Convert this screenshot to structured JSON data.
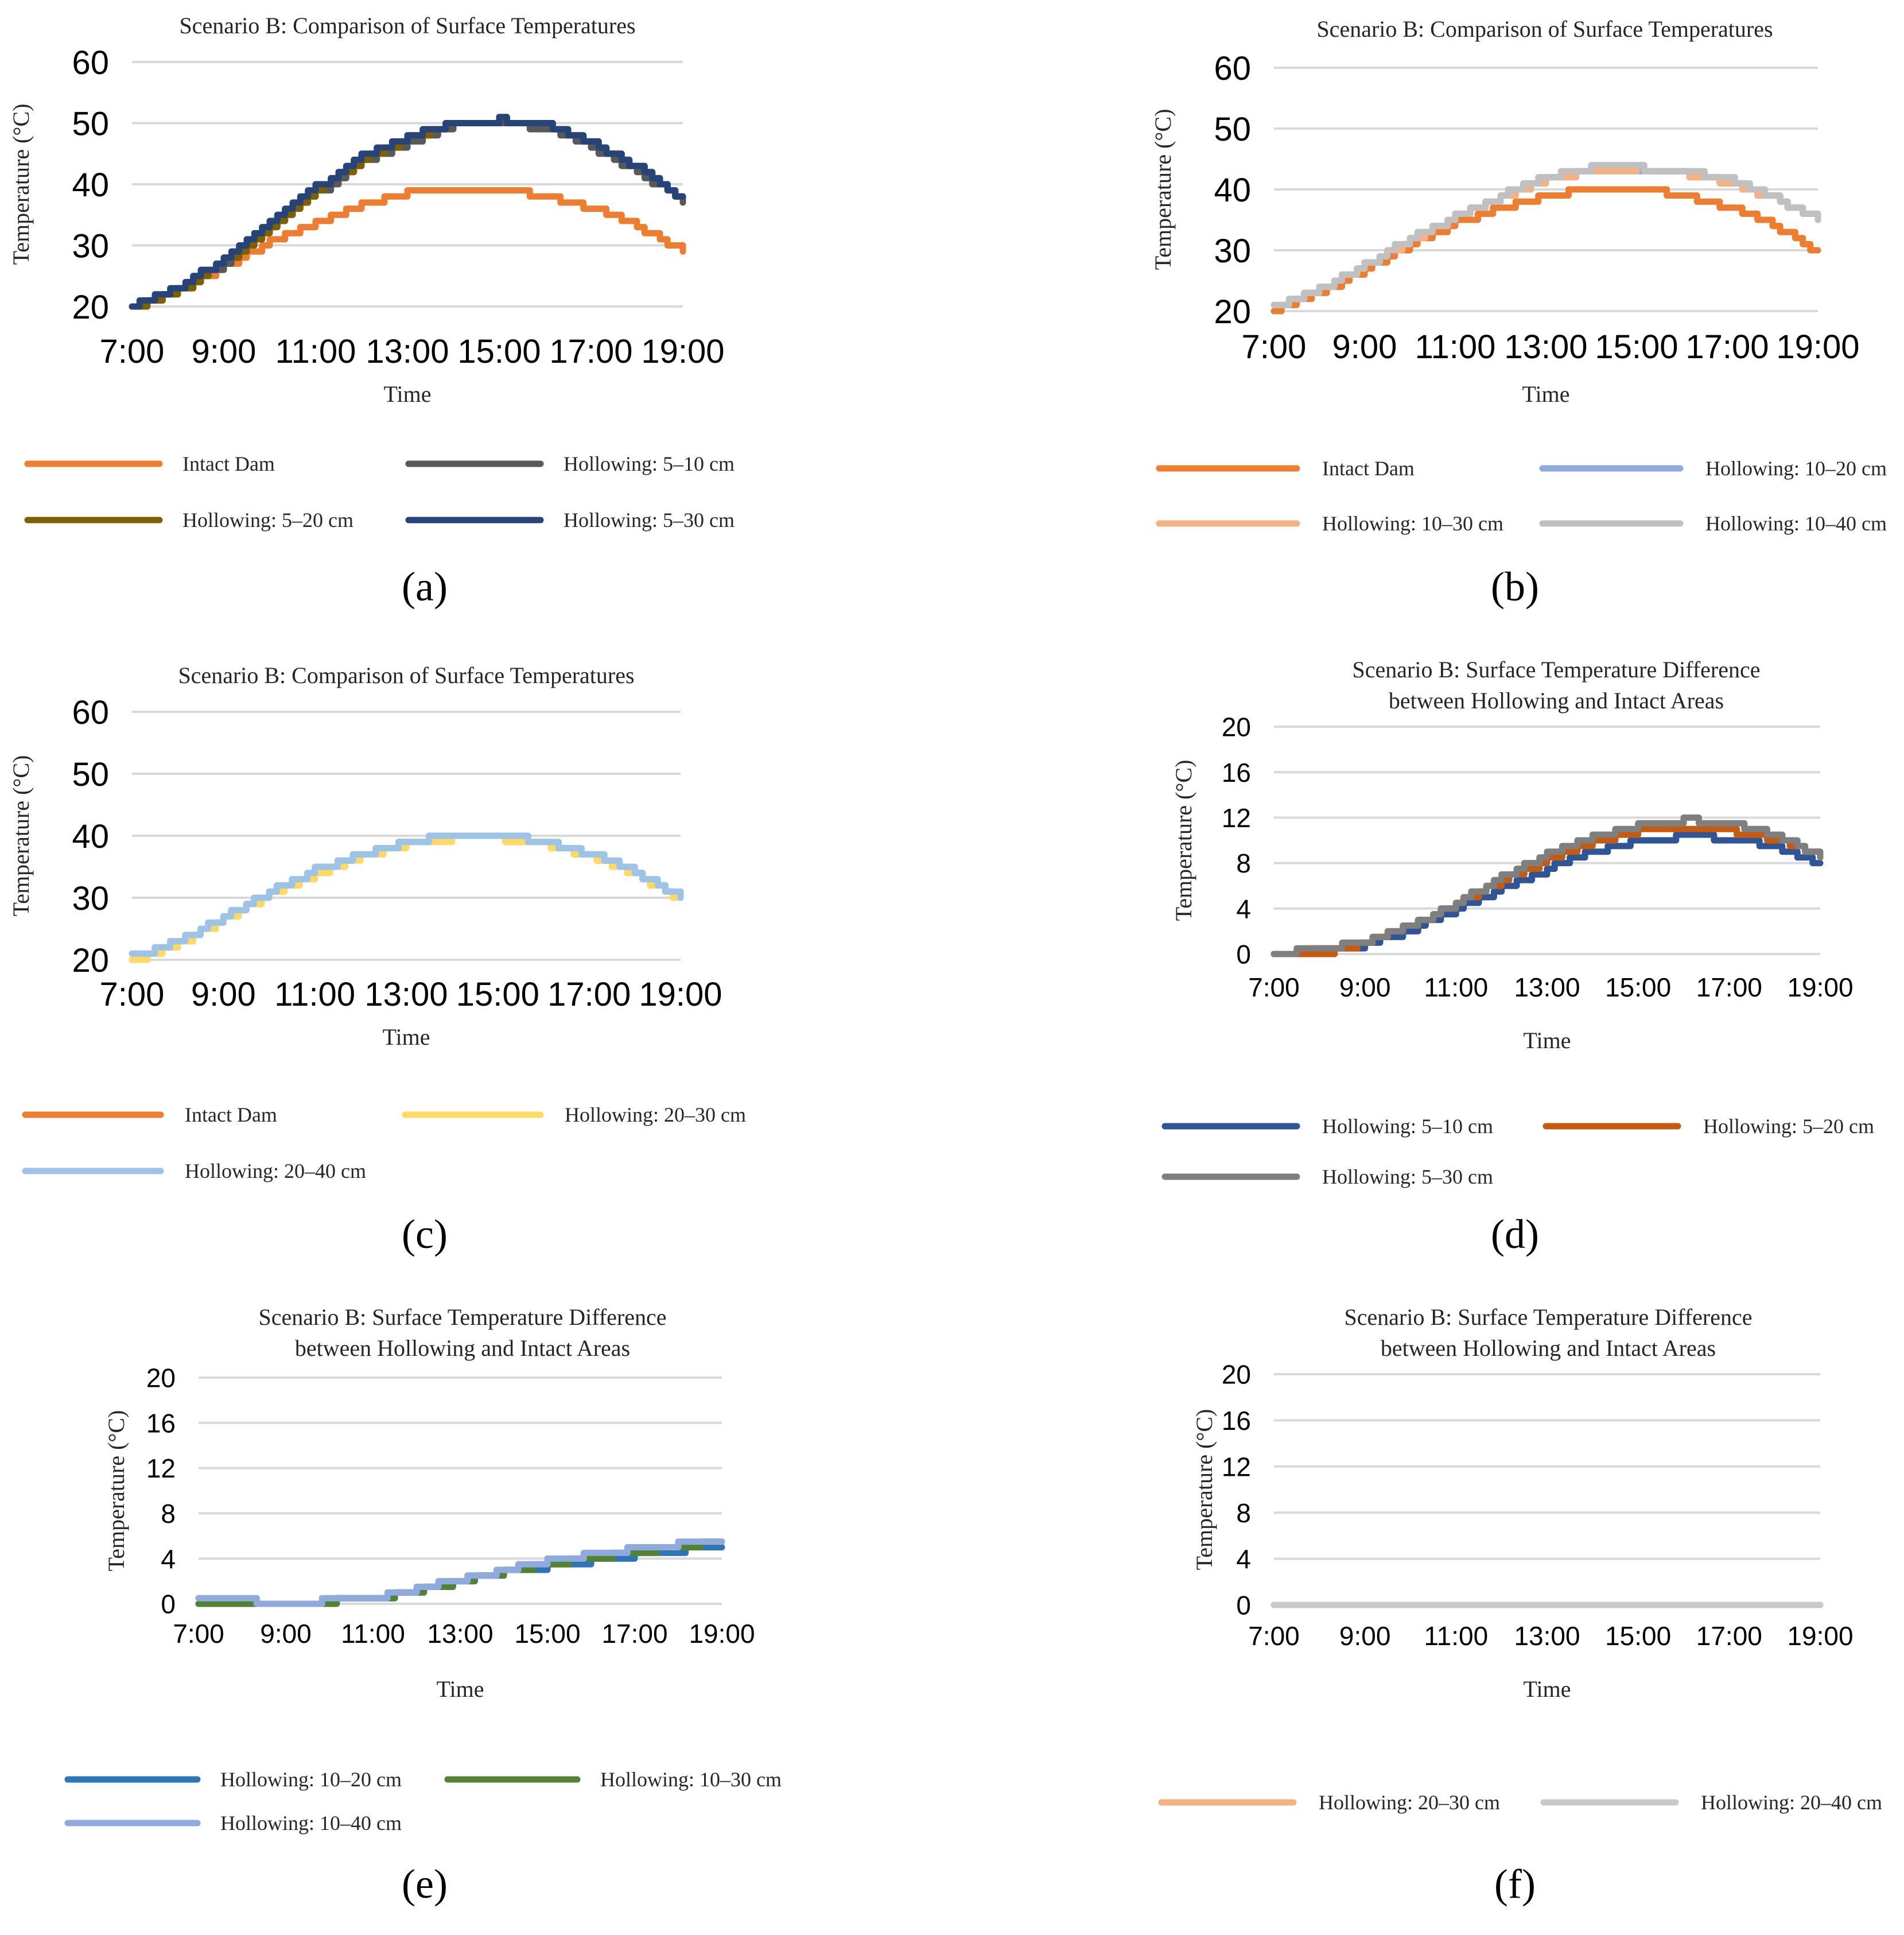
{
  "figure": {
    "panels": [
      {
        "id": "a",
        "label": "(a)",
        "title": [
          "Scenario B: Comparison of Surface Temperatures"
        ],
        "ylabel": "Temperature (°C)",
        "xlabel": "Time",
        "y_ticks": [
          "20",
          "30",
          "40",
          "50",
          "60"
        ],
        "x_ticks": [
          "7:00",
          "9:00",
          "11:00",
          "13:00",
          "15:00",
          "17:00",
          "19:00"
        ],
        "legend": [
          "Intact Dam",
          "Hollowing: 5–10 cm",
          "Hollowing: 5–20 cm",
          "Hollowing: 5–30 cm"
        ]
      },
      {
        "id": "b",
        "label": "(b)",
        "title": [
          "Scenario B: Comparison of Surface Temperatures"
        ],
        "ylabel": "Temperature (°C)",
        "xlabel": "Time",
        "y_ticks": [
          "20",
          "30",
          "40",
          "50",
          "60"
        ],
        "x_ticks": [
          "7:00",
          "9:00",
          "11:00",
          "13:00",
          "15:00",
          "17:00",
          "19:00"
        ],
        "legend": [
          "Intact Dam",
          "Hollowing: 10–20 cm",
          "Hollowing: 10–30 cm",
          "Hollowing: 10–40 cm"
        ]
      },
      {
        "id": "c",
        "label": "(c)",
        "title": [
          "Scenario B: Comparison of Surface Temperatures"
        ],
        "ylabel": "Temperature (°C)",
        "xlabel": "Time",
        "y_ticks": [
          "20",
          "30",
          "40",
          "50",
          "60"
        ],
        "x_ticks": [
          "7:00",
          "9:00",
          "11:00",
          "13:00",
          "15:00",
          "17:00",
          "19:00"
        ],
        "legend": [
          "Intact Dam",
          "Hollowing: 20–30 cm",
          "Hollowing: 20–40 cm"
        ]
      },
      {
        "id": "d",
        "label": "(d)",
        "title": [
          "Scenario B: Surface Temperature Difference",
          "between Hollowing and Intact Areas"
        ],
        "ylabel": "Temperature (°C)",
        "xlabel": "Time",
        "y_ticks": [
          "0",
          "4",
          "8",
          "12",
          "16",
          "20"
        ],
        "x_ticks": [
          "7:00",
          "9:00",
          "11:00",
          "13:00",
          "15:00",
          "17:00",
          "19:00"
        ],
        "legend": [
          "Hollowing: 5–10 cm",
          "Hollowing: 5–20 cm",
          "Hollowing: 5–30 cm"
        ]
      },
      {
        "id": "e",
        "label": "(e)",
        "title": [
          "Scenario B: Surface Temperature Difference",
          "between Hollowing and Intact Areas"
        ],
        "ylabel": "Temperature (°C)",
        "xlabel": "Time",
        "y_ticks": [
          "0",
          "4",
          "8",
          "12",
          "16",
          "20"
        ],
        "x_ticks": [
          "7:00",
          "9:00",
          "11:00",
          "13:00",
          "15:00",
          "17:00",
          "19:00"
        ],
        "legend": [
          "Hollowing: 10–20 cm",
          "Hollowing: 10–30 cm",
          "Hollowing: 10–40 cm"
        ]
      },
      {
        "id": "f",
        "label": "(f)",
        "title": [
          "Scenario B: Surface Temperature Difference",
          "between Hollowing and Intact Areas"
        ],
        "ylabel": "Temperature (°C)",
        "xlabel": "Time",
        "y_ticks": [
          "0",
          "4",
          "8",
          "12",
          "16",
          "20"
        ],
        "x_ticks": [
          "7:00",
          "9:00",
          "11:00",
          "13:00",
          "15:00",
          "17:00",
          "19:00"
        ],
        "legend": [
          "Hollowing: 20–30 cm",
          "Hollowing: 20–40 cm"
        ]
      }
    ]
  },
  "chart_data": [
    {
      "type": "line",
      "panel": "a",
      "title": "Scenario B: Comparison of Surface Temperatures",
      "xlabel": "Time",
      "ylabel": "Temperature (°C)",
      "x": [
        "7:00",
        "8:00",
        "9:00",
        "10:00",
        "11:00",
        "12:00",
        "13:00",
        "14:00",
        "15:00",
        "16:00",
        "17:00",
        "18:00",
        "19:00"
      ],
      "xlim": [
        "7:00",
        "19:00"
      ],
      "ylim": [
        20,
        60
      ],
      "grid": true,
      "legend_position": "bottom",
      "series": [
        {
          "name": "Intact Dam",
          "color": "#ED7D31",
          "values": [
            20,
            22.5,
            26.5,
            30.5,
            33.5,
            36.5,
            38.5,
            39,
            39,
            38,
            36,
            33,
            29
          ]
        },
        {
          "name": "Hollowing: 5–10 cm",
          "color": "#595959",
          "values": [
            20,
            22.5,
            27,
            32.5,
            38.5,
            43.5,
            47,
            49.5,
            50,
            49,
            46,
            42,
            37
          ]
        },
        {
          "name": "Hollowing: 5–20 cm",
          "color": "#7F6000",
          "values": [
            20,
            22.5,
            27.5,
            33,
            39,
            44,
            47.5,
            50,
            50.5,
            49.5,
            46.5,
            42.5,
            37.5
          ]
        },
        {
          "name": "Hollowing: 5–30 cm",
          "color": "#264478",
          "values": [
            20,
            23,
            28,
            33.5,
            39.5,
            44.5,
            48,
            50,
            50.5,
            49.5,
            46.5,
            42.5,
            37.5
          ]
        }
      ]
    },
    {
      "type": "line",
      "panel": "b",
      "title": "Scenario B: Comparison of Surface Temperatures",
      "xlabel": "Time",
      "ylabel": "Temperature (°C)",
      "x": [
        "7:00",
        "8:00",
        "9:00",
        "10:00",
        "11:00",
        "12:00",
        "13:00",
        "14:00",
        "15:00",
        "16:00",
        "17:00",
        "18:00",
        "19:00"
      ],
      "xlim": [
        "7:00",
        "19:00"
      ],
      "ylim": [
        20,
        60
      ],
      "grid": true,
      "legend_position": "bottom",
      "series": [
        {
          "name": "Intact Dam",
          "color": "#ED7D31",
          "values": [
            20,
            23,
            27,
            31,
            34.5,
            37,
            39,
            40,
            40,
            39,
            37,
            34,
            29.5
          ]
        },
        {
          "name": "Hollowing: 10–20 cm",
          "color": "#8FAADC",
          "values": [
            20.5,
            23.5,
            27.5,
            31.5,
            35.5,
            38.5,
            41.5,
            43,
            43,
            42.5,
            41,
            38.5,
            35
          ]
        },
        {
          "name": "Hollowing: 10–30 cm",
          "color": "#F4B183",
          "values": [
            20.5,
            23.5,
            27.5,
            31.5,
            35.5,
            38.5,
            41.5,
            43,
            43.5,
            42.5,
            41,
            38.5,
            35
          ]
        },
        {
          "name": "Hollowing: 10–40 cm",
          "color": "#C0C0C0",
          "values": [
            20.5,
            23.5,
            27.5,
            32,
            35.5,
            39,
            42,
            43.5,
            43.5,
            43,
            41.5,
            38.5,
            35
          ]
        }
      ]
    },
    {
      "type": "line",
      "panel": "c",
      "title": "Scenario B: Comparison of Surface Temperatures",
      "xlabel": "Time",
      "ylabel": "Temperature (°C)",
      "x": [
        "7:00",
        "8:00",
        "9:00",
        "10:00",
        "11:00",
        "12:00",
        "13:00",
        "14:00",
        "15:00",
        "16:00",
        "17:00",
        "18:00",
        "19:00"
      ],
      "xlim": [
        "7:00",
        "19:00"
      ],
      "ylim": [
        20,
        60
      ],
      "grid": true,
      "legend_position": "bottom",
      "series": [
        {
          "name": "Intact Dam",
          "color": "#ED7D31",
          "values": [
            20,
            22.5,
            26.5,
            30.5,
            34,
            37,
            39,
            40,
            39.5,
            38.5,
            36.5,
            33.5,
            29.5
          ]
        },
        {
          "name": "Hollowing: 20–30 cm",
          "color": "#FFD966",
          "values": [
            20,
            22.5,
            26.5,
            30.5,
            34,
            36.5,
            38.5,
            39.5,
            39.5,
            38.5,
            36.5,
            33.5,
            29.5
          ]
        },
        {
          "name": "Hollowing: 20–40 cm",
          "color": "#9DC3E6",
          "values": [
            20.5,
            23,
            27,
            31,
            34.5,
            37,
            39,
            40,
            40,
            39,
            37,
            34,
            30
          ]
        }
      ]
    },
    {
      "type": "line",
      "panel": "d",
      "title": "Scenario B: Surface Temperature Difference between Hollowing and Intact Areas",
      "xlabel": "Time",
      "ylabel": "Temperature (°C)",
      "x": [
        "7:00",
        "8:00",
        "9:00",
        "10:00",
        "11:00",
        "12:00",
        "13:00",
        "14:00",
        "15:00",
        "16:00",
        "17:00",
        "18:00",
        "19:00"
      ],
      "xlim": [
        "7:00",
        "19:00"
      ],
      "ylim": [
        0,
        20
      ],
      "grid": true,
      "legend_position": "bottom",
      "series": [
        {
          "name": "Hollowing: 5–10 cm",
          "color": "#2F5597",
          "values": [
            0,
            0.3,
            0.8,
            2.2,
            4,
            5.8,
            7.5,
            9,
            10,
            10.3,
            10.2,
            9.5,
            7.8
          ]
        },
        {
          "name": "Hollowing: 5–20 cm",
          "color": "#C55A11",
          "values": [
            0,
            0,
            1,
            2.5,
            4.5,
            6.5,
            8.3,
            9.8,
            10.8,
            11,
            10.8,
            10,
            8.5
          ]
        },
        {
          "name": "Hollowing: 5–30 cm",
          "color": "#7F7F7F",
          "values": [
            0,
            0.5,
            1,
            2.5,
            4.5,
            6.8,
            8.8,
            10.3,
            11.3,
            11.8,
            11.5,
            10.5,
            8.5
          ]
        }
      ]
    },
    {
      "type": "line",
      "panel": "e",
      "title": "Scenario B: Surface Temperature Difference between Hollowing and Intact Areas",
      "xlabel": "Time",
      "ylabel": "Temperature (°C)",
      "x": [
        "7:00",
        "8:00",
        "9:00",
        "10:00",
        "11:00",
        "12:00",
        "13:00",
        "14:00",
        "15:00",
        "16:00",
        "17:00",
        "18:00",
        "19:00"
      ],
      "xlim": [
        "7:00",
        "19:00"
      ],
      "ylim": [
        0,
        20
      ],
      "grid": true,
      "legend_position": "bottom",
      "series": [
        {
          "name": "Hollowing: 10–20 cm",
          "color": "#2E75B6",
          "values": [
            0,
            0,
            0,
            0.2,
            0.5,
            1.2,
            2,
            2.8,
            3.3,
            3.8,
            4.3,
            4.7,
            5.2
          ]
        },
        {
          "name": "Hollowing: 10–30 cm",
          "color": "#548235",
          "values": [
            0,
            0,
            0,
            0.2,
            0.5,
            1.2,
            2,
            2.8,
            3.5,
            4,
            4.5,
            5,
            5.5
          ]
        },
        {
          "name": "Hollowing: 10–40 cm",
          "color": "#8FAADC",
          "values": [
            0.3,
            0.3,
            0,
            0.3,
            0.6,
            1.3,
            2.2,
            3,
            3.8,
            4.4,
            4.9,
            5.3,
            5.7
          ]
        }
      ]
    },
    {
      "type": "line",
      "panel": "f",
      "title": "Scenario B: Surface Temperature Difference between Hollowing and Intact Areas",
      "xlabel": "Time",
      "ylabel": "Temperature (°C)",
      "x": [
        "7:00",
        "8:00",
        "9:00",
        "10:00",
        "11:00",
        "12:00",
        "13:00",
        "14:00",
        "15:00",
        "16:00",
        "17:00",
        "18:00",
        "19:00"
      ],
      "xlim": [
        "7:00",
        "19:00"
      ],
      "ylim": [
        0,
        20
      ],
      "grid": true,
      "legend_position": "bottom",
      "series": [
        {
          "name": "Hollowing: 20–30 cm",
          "color": "#F4B183",
          "values": [
            0,
            0,
            0,
            0,
            0,
            0,
            0,
            0,
            0,
            0,
            0,
            0,
            0
          ]
        },
        {
          "name": "Hollowing: 20–40 cm",
          "color": "#C9C9C9",
          "values": [
            0.2,
            0.2,
            0.1,
            0,
            0,
            0,
            0,
            0.1,
            0.2,
            0.2,
            0.2,
            0.2,
            0.2
          ]
        }
      ]
    }
  ]
}
